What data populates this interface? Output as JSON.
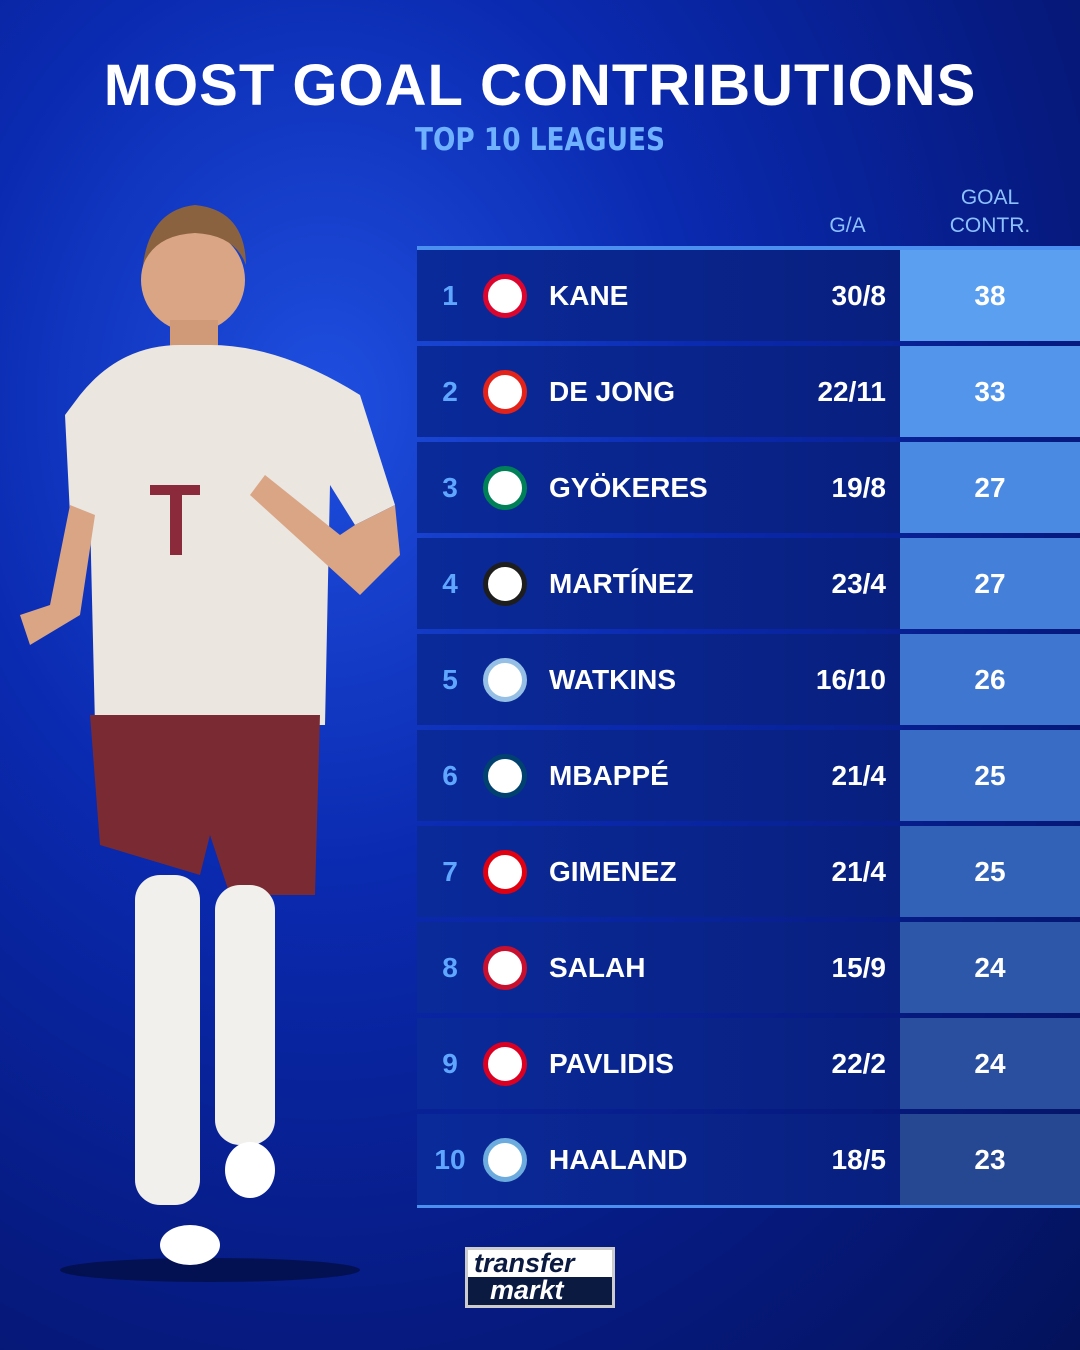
{
  "title": "MOST GOAL CONTRIBUTIONS",
  "subtitle": "TOP 10 LEAGUES",
  "headers": {
    "ga": "G/A",
    "goal_contr_1": "GOAL",
    "goal_contr_2": "CONTR."
  },
  "rows": [
    {
      "rank": "1",
      "name": "KANE",
      "ga": "30/8",
      "total": "38",
      "club_icon": "bayern-munich-crest",
      "crest_color": "#dc052d",
      "score_color": "#5a9ff0"
    },
    {
      "rank": "2",
      "name": "DE JONG",
      "ga": "22/11",
      "total": "33",
      "club_icon": "psv-crest",
      "crest_color": "#e32219",
      "score_color": "#5395ea"
    },
    {
      "rank": "3",
      "name": "GYÖKERES",
      "ga": "19/8",
      "total": "27",
      "club_icon": "sporting-cp-crest",
      "crest_color": "#008057",
      "score_color": "#4b8ae2"
    },
    {
      "rank": "4",
      "name": "MARTÍNEZ",
      "ga": "23/4",
      "total": "27",
      "club_icon": "inter-milan-crest",
      "crest_color": "#1e1e1e",
      "score_color": "#4480da"
    },
    {
      "rank": "5",
      "name": "WATKINS",
      "ga": "16/10",
      "total": "26",
      "club_icon": "aston-villa-crest",
      "crest_color": "#95bfe5",
      "score_color": "#3e76d0"
    },
    {
      "rank": "6",
      "name": "MBAPPÉ",
      "ga": "21/4",
      "total": "25",
      "club_icon": "psg-crest",
      "crest_color": "#004170",
      "score_color": "#386cc5"
    },
    {
      "rank": "7",
      "name": "GIMENEZ",
      "ga": "21/4",
      "total": "25",
      "club_icon": "feyenoord-crest",
      "crest_color": "#e1000f",
      "score_color": "#3262b8"
    },
    {
      "rank": "8",
      "name": "SALAH",
      "ga": "15/9",
      "total": "24",
      "club_icon": "liverpool-crest",
      "crest_color": "#c8102e",
      "score_color": "#2d58aa"
    },
    {
      "rank": "9",
      "name": "PAVLIDIS",
      "ga": "22/2",
      "total": "24",
      "club_icon": "az-alkmaar-crest",
      "crest_color": "#db0021",
      "score_color": "#294f9e"
    },
    {
      "rank": "10",
      "name": "HAALAND",
      "ga": "18/5",
      "total": "23",
      "club_icon": "manchester-city-crest",
      "crest_color": "#6cabdd",
      "score_color": "#264893"
    }
  ],
  "logo": {
    "line1": "transfer",
    "line2": "markt"
  }
}
